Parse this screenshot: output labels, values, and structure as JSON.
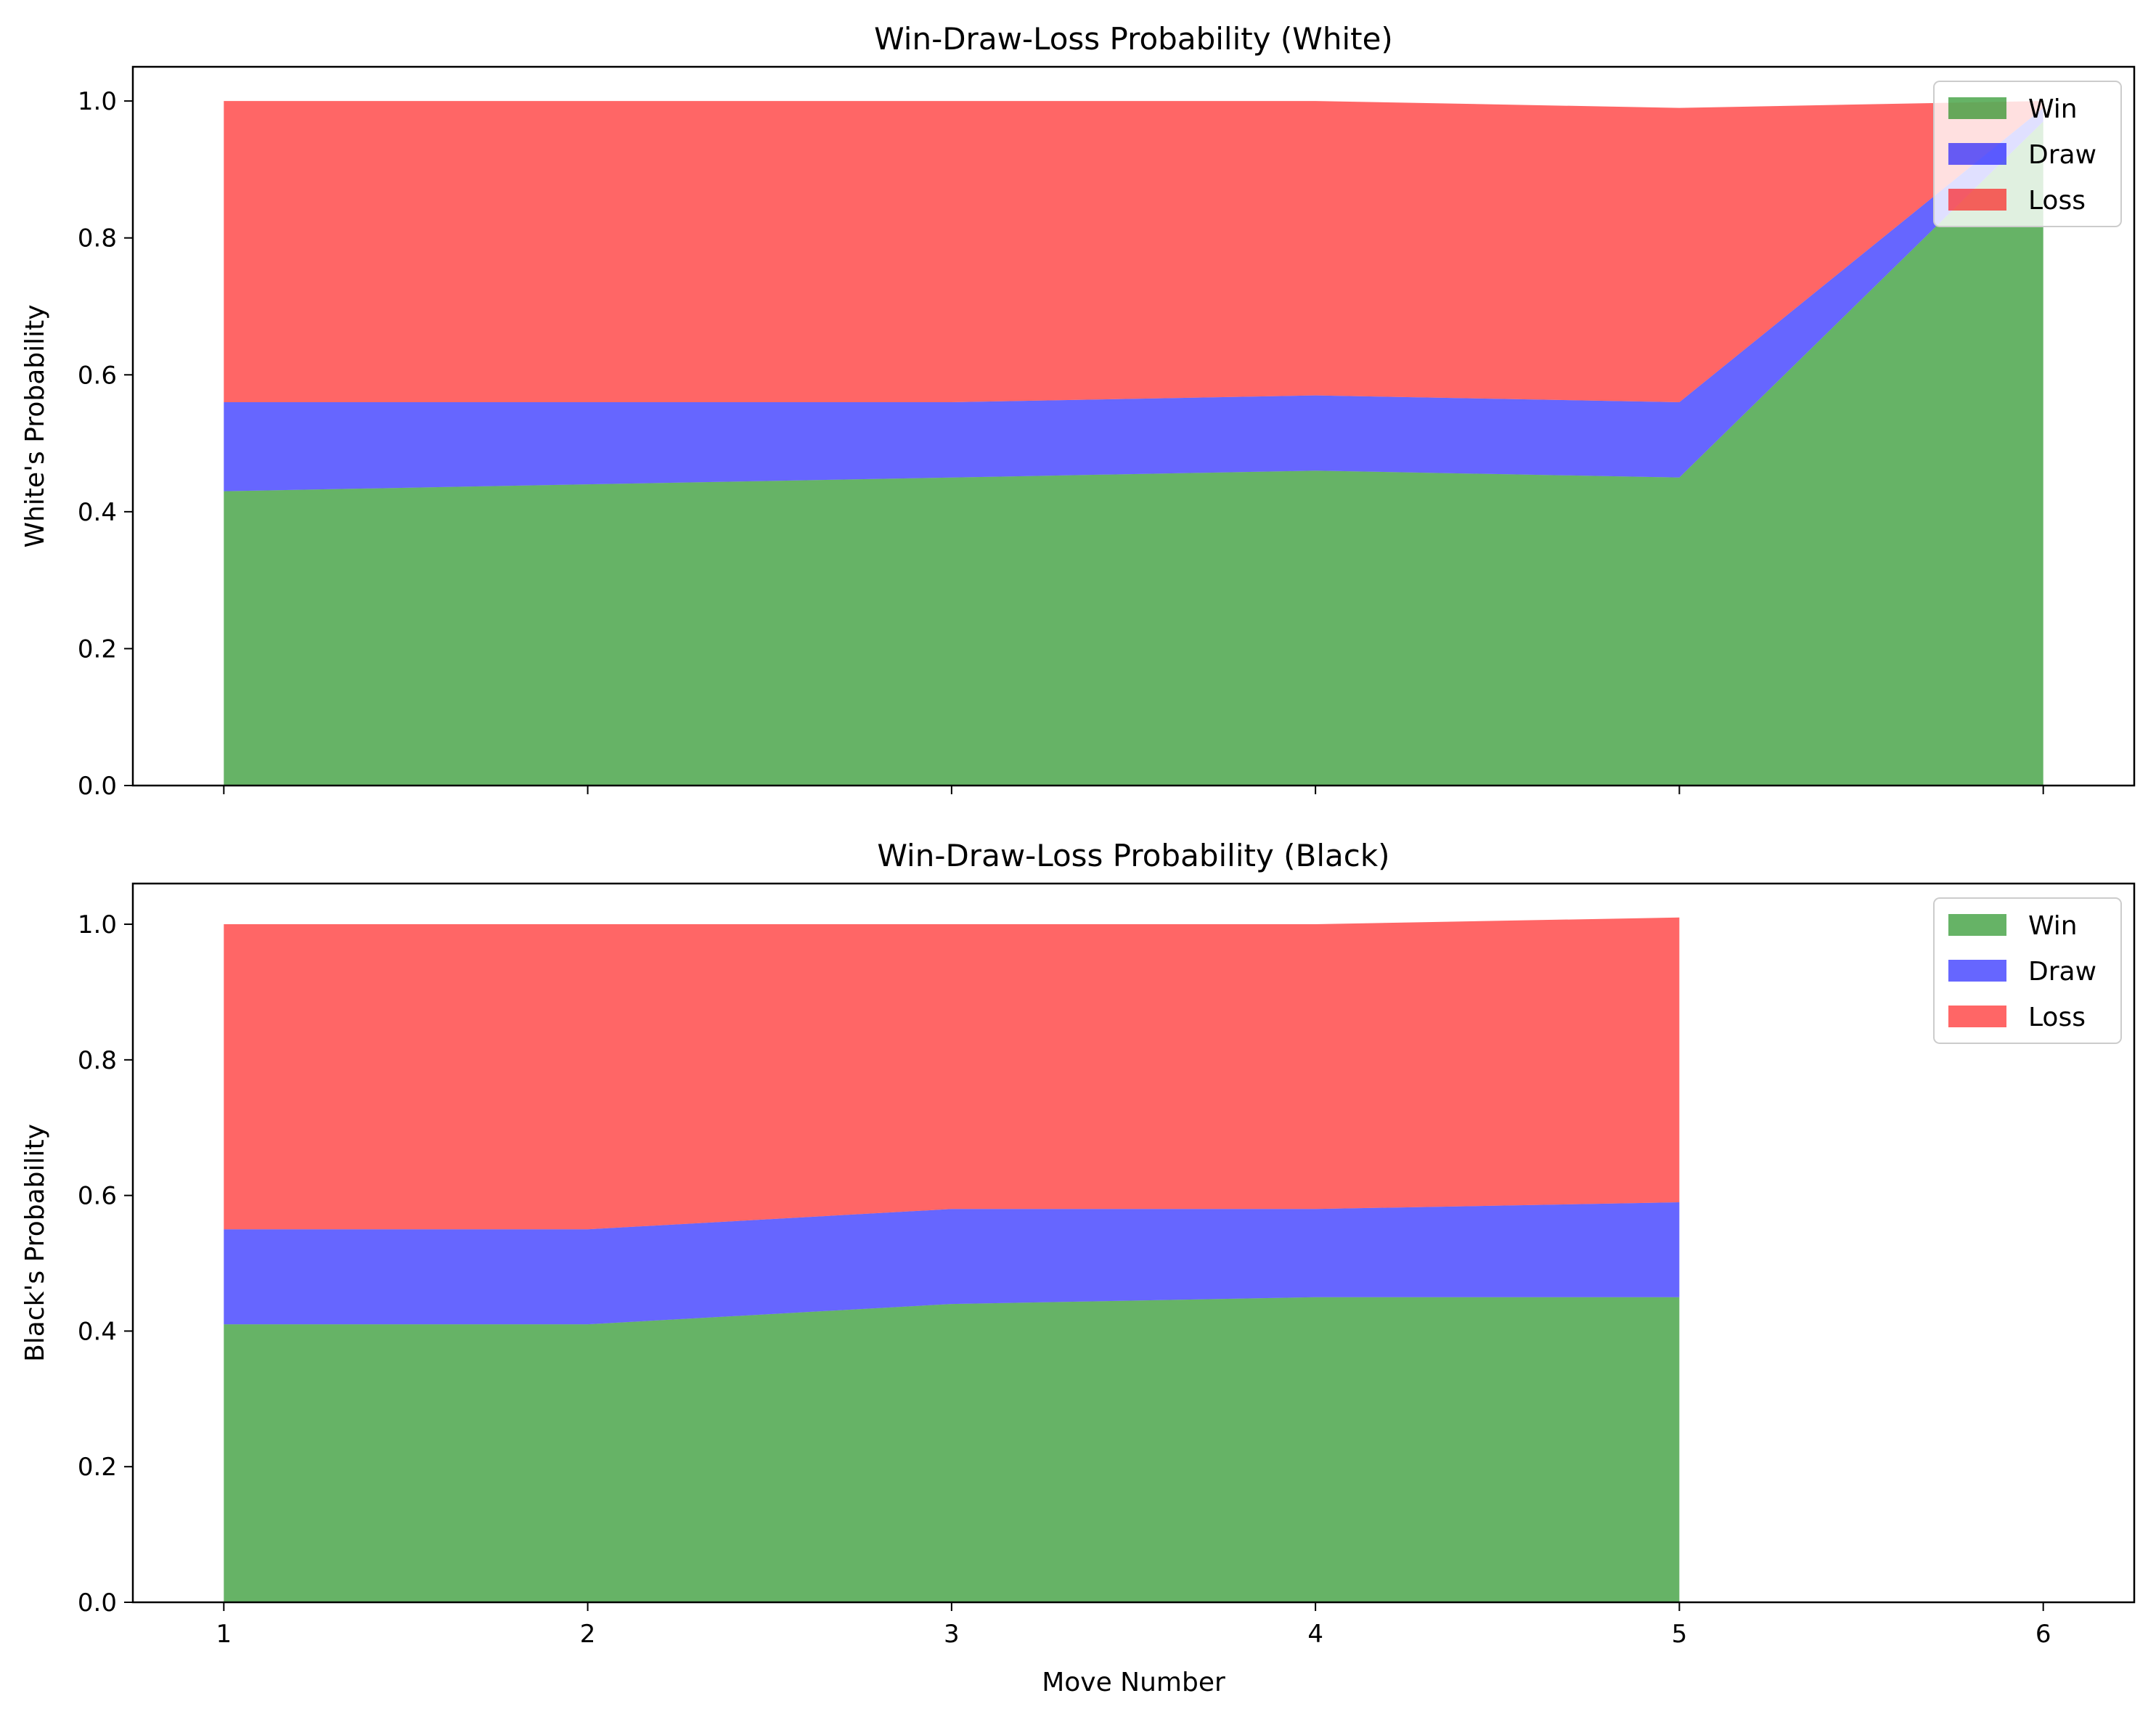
{
  "chart_data": [
    {
      "type": "area",
      "stacked": true,
      "title": "Win-Draw-Loss Probability (White)",
      "xlabel": "",
      "ylabel": "White's Probability",
      "x": [
        1,
        2,
        3,
        4,
        5,
        6
      ],
      "xlim": [
        0.75,
        6.25
      ],
      "ylim": [
        0,
        1.05
      ],
      "xticks": [
        1,
        2,
        3,
        4,
        5,
        6
      ],
      "show_xtick_labels": false,
      "yticks": [
        "0.0",
        "0.2",
        "0.4",
        "0.6",
        "0.8",
        "1.0"
      ],
      "grid": false,
      "legend_position": "upper right",
      "series": [
        {
          "name": "Win",
          "color": "#008000",
          "values": [
            0.43,
            0.44,
            0.45,
            0.46,
            0.45,
            0.97
          ]
        },
        {
          "name": "Draw",
          "color": "#0000ff",
          "values": [
            0.13,
            0.12,
            0.11,
            0.11,
            0.11,
            0.02
          ]
        },
        {
          "name": "Loss",
          "color": "#ff0000",
          "values": [
            0.44,
            0.44,
            0.44,
            0.43,
            0.43,
            0.01
          ]
        }
      ]
    },
    {
      "type": "area",
      "stacked": true,
      "title": "Win-Draw-Loss Probability (Black)",
      "xlabel": "Move Number",
      "ylabel": "Black's Probability",
      "x": [
        1,
        2,
        3,
        4,
        5
      ],
      "xlim": [
        0.75,
        6.25
      ],
      "ylim": [
        0,
        1.06
      ],
      "xticks": [
        1,
        2,
        3,
        4,
        5,
        6
      ],
      "show_xtick_labels": true,
      "yticks": [
        "0.0",
        "0.2",
        "0.4",
        "0.6",
        "0.8",
        "1.0"
      ],
      "grid": false,
      "legend_position": "upper right",
      "series": [
        {
          "name": "Win",
          "color": "#008000",
          "values": [
            0.41,
            0.41,
            0.44,
            0.45,
            0.45
          ]
        },
        {
          "name": "Draw",
          "color": "#0000ff",
          "values": [
            0.14,
            0.14,
            0.14,
            0.13,
            0.14
          ]
        },
        {
          "name": "Loss",
          "color": "#ff0000",
          "values": [
            0.45,
            0.45,
            0.42,
            0.42,
            0.42
          ]
        }
      ]
    }
  ]
}
